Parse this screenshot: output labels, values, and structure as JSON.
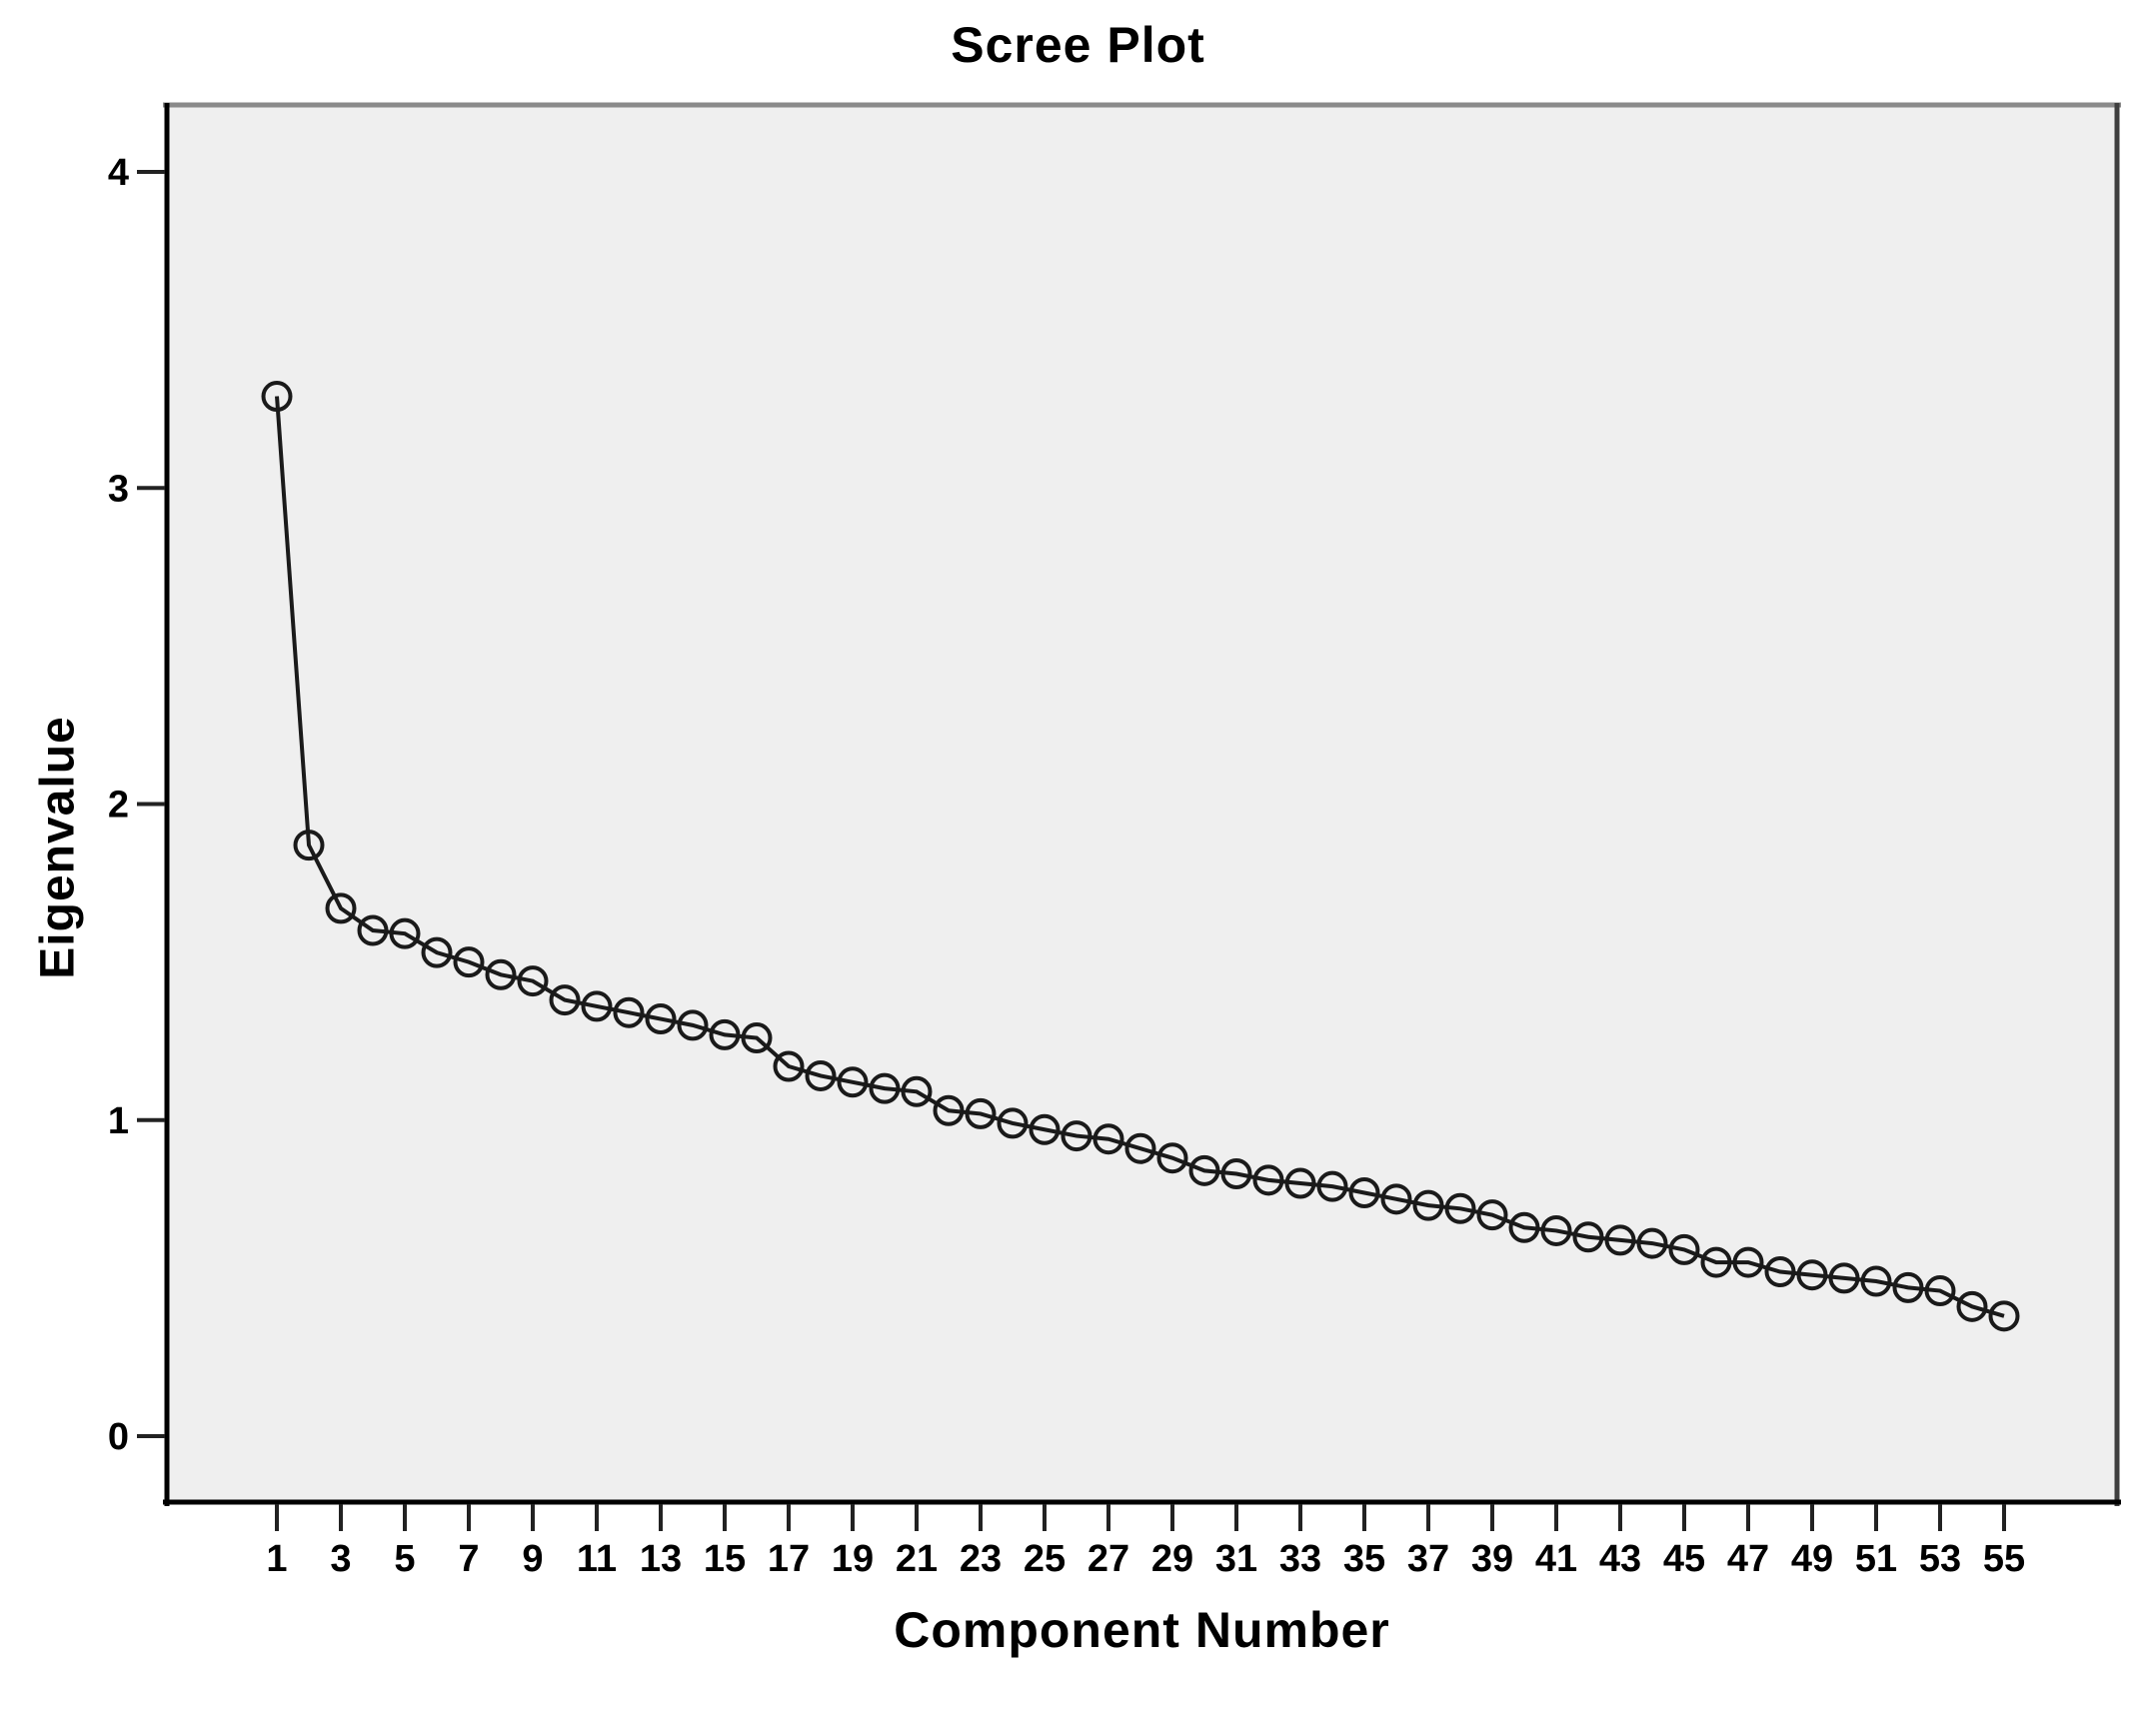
{
  "figure": {
    "title": "Scree Plot"
  },
  "chart_data": {
    "type": "line",
    "title": "Scree Plot",
    "xlabel": "Component Number",
    "ylabel": "Eigenvalue",
    "x": [
      1,
      2,
      3,
      4,
      5,
      6,
      7,
      8,
      9,
      10,
      11,
      12,
      13,
      14,
      15,
      16,
      17,
      18,
      19,
      20,
      21,
      22,
      23,
      24,
      25,
      26,
      27,
      28,
      29,
      30,
      31,
      32,
      33,
      34,
      35,
      36,
      37,
      38,
      39,
      40,
      41,
      42,
      43,
      44,
      45,
      46,
      47,
      48,
      49,
      50,
      51,
      52,
      53,
      54,
      55
    ],
    "series": [
      {
        "name": "Eigenvalue",
        "values": [
          3.29,
          1.87,
          1.67,
          1.6,
          1.59,
          1.53,
          1.5,
          1.46,
          1.44,
          1.38,
          1.36,
          1.34,
          1.32,
          1.3,
          1.27,
          1.26,
          1.17,
          1.14,
          1.12,
          1.1,
          1.09,
          1.03,
          1.02,
          0.99,
          0.97,
          0.95,
          0.94,
          0.91,
          0.88,
          0.84,
          0.83,
          0.81,
          0.8,
          0.79,
          0.77,
          0.75,
          0.73,
          0.72,
          0.7,
          0.66,
          0.65,
          0.63,
          0.62,
          0.61,
          0.59,
          0.55,
          0.55,
          0.52,
          0.51,
          0.5,
          0.49,
          0.47,
          0.46,
          0.41,
          0.38
        ]
      }
    ],
    "x_tick_labels": [
      "1",
      "3",
      "5",
      "7",
      "9",
      "11",
      "13",
      "15",
      "17",
      "19",
      "21",
      "23",
      "25",
      "27",
      "29",
      "31",
      "33",
      "35",
      "37",
      "39",
      "41",
      "43",
      "45",
      "47",
      "49",
      "51",
      "53",
      "55"
    ],
    "y_tick_labels": [
      "0",
      "1",
      "2",
      "3",
      "4"
    ],
    "xlim": [
      -2.5,
      58.6
    ],
    "ylim": [
      -0.21,
      4.22
    ],
    "grid": false,
    "legend": false,
    "marker": "open-circle",
    "colors": {
      "line": "#1a1a1a",
      "marker_stroke": "#1a1a1a",
      "plot_bg": "#efefef",
      "frame_top": "#8a8a8a",
      "frame_right": "#3f3f3f",
      "frame_bottom": "#000000",
      "frame_left": "#000000",
      "tick": "#222222",
      "text": "#000000"
    }
  }
}
